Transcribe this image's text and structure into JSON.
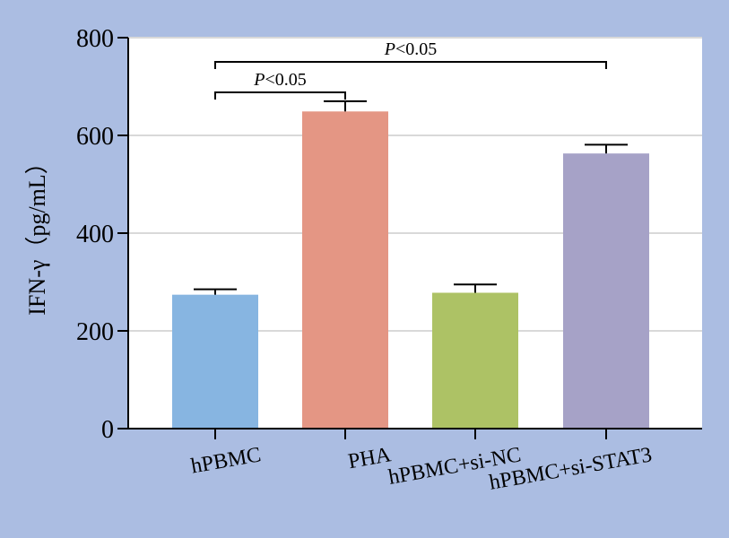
{
  "chart_data": {
    "type": "bar",
    "title": "",
    "xlabel": "",
    "ylabel": "IFN-γ（pg/mL）",
    "ylim": [
      0,
      800
    ],
    "yticks": [
      0,
      200,
      400,
      600,
      800
    ],
    "grid": "horizontal",
    "categories": [
      "hPBMC",
      "PHA",
      "hPBMC+si-NC",
      "hPBMC+si-STAT3"
    ],
    "values": [
      274,
      649,
      278,
      563
    ],
    "errors": [
      11,
      21,
      17,
      18
    ],
    "colors": [
      "#87b5e1",
      "#e49684",
      "#adc265",
      "#a6a2c7"
    ],
    "significance": [
      {
        "from": 0,
        "to": 1,
        "p_prefix": "P",
        "p_text": "<0.05"
      },
      {
        "from": 0,
        "to": 3,
        "p_prefix": "P",
        "p_text": "<0.05"
      }
    ]
  },
  "style": {
    "background": "#abbde2",
    "plot_background": "#ffffff",
    "grid_color": "#d9d9d9",
    "axis_color": "#000000"
  }
}
